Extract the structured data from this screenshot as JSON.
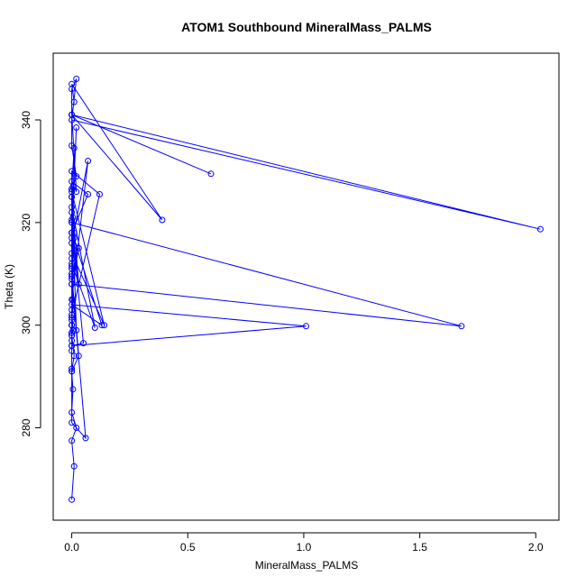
{
  "chart_data": {
    "type": "line",
    "title": "ATOM1 Southbound MineralMass_PALMS",
    "xlabel": "MineralMass_PALMS",
    "ylabel": "Theta (K)",
    "xlim": [
      -0.08,
      2.1
    ],
    "ylim": [
      262,
      353
    ],
    "xticks": [
      0.0,
      0.5,
      1.0,
      1.5,
      2.0
    ],
    "xtick_labels": [
      "0.0",
      "0.5",
      "1.0",
      "1.5",
      "2.0"
    ],
    "yticks": [
      280,
      300,
      320,
      340
    ],
    "ytick_labels": [
      "280",
      "300",
      "320",
      "340"
    ],
    "grid": false,
    "legend": "none",
    "series_color": "#0000ff",
    "marker": "open-circle",
    "series": [
      {
        "x": [
          0.0,
          0.01,
          0.0,
          0.02,
          0.0,
          0.005,
          0.0,
          0.01,
          0.0,
          0.0,
          0.005,
          0.0,
          0.0,
          0.01,
          0.0,
          0.0,
          0.005,
          0.02,
          0.0,
          0.0,
          0.6,
          0.0,
          0.01,
          0.0,
          0.39,
          0.0,
          0.0,
          0.02,
          0.0,
          2.02,
          0.0,
          0.02,
          0.0,
          0.07,
          0.0,
          0.005,
          0.0,
          1.68,
          0.0,
          0.05,
          0.0,
          1.01,
          0.0,
          0.13,
          0.0,
          0.0,
          0.0,
          0.03,
          0.0,
          0.0,
          0.03,
          0.0,
          0.0,
          0.01,
          0.0,
          0.14,
          0.0,
          0.0,
          0.1,
          0.0,
          0.0,
          0.12,
          0.0,
          0.0,
          0.07,
          0.0,
          0.0,
          0.01,
          0.0,
          0.0,
          0.0,
          0.02,
          0.0,
          0.03,
          0.0,
          0.0,
          0.02,
          0.0,
          0.0,
          0.01,
          0.0,
          0.06,
          0.0,
          0.0,
          0.0,
          0.0,
          0.005,
          0.0,
          0.0,
          0.0,
          0.0,
          0.0,
          0.0,
          0.0,
          0.0
        ],
        "y": [
          266,
          272.5,
          277.5,
          280,
          283,
          287.5,
          291,
          294,
          298,
          301,
          305,
          310,
          313,
          317,
          320.5,
          325,
          327,
          329,
          335,
          341,
          329.5,
          341,
          343.5,
          347,
          320.5,
          341,
          346,
          348,
          340,
          318.7,
          341,
          326,
          328,
          325.5,
          318,
          321,
          308,
          299.8,
          320,
          296.5,
          296,
          299.8,
          304,
          300,
          318,
          311,
          309.5,
          315,
          308,
          291,
          294,
          310,
          311.5,
          315.5,
          314,
          300,
          326,
          323,
          299.5,
          312,
          330,
          325.5,
          302,
          316,
          332,
          305,
          300,
          334.5,
          326.5,
          322,
          318,
          338.5,
          320,
          308,
          325,
          326.5,
          299,
          300,
          317,
          318,
          309,
          278,
          281,
          291.5,
          296,
          298,
          299,
          303,
          298.5,
          301.5,
          302,
          295,
          297,
          298.5,
          300
        ]
      }
    ]
  }
}
